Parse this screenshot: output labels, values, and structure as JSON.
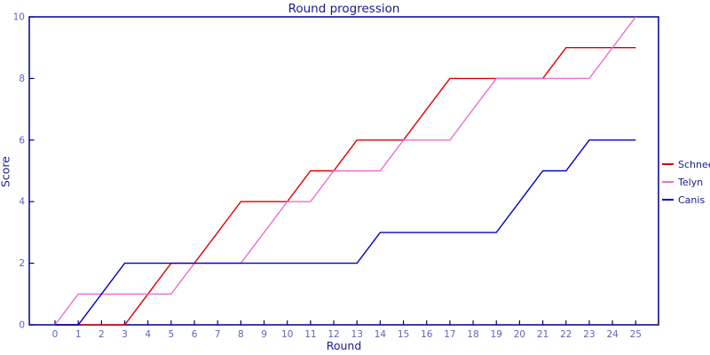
{
  "title": "Round progression",
  "colors": {
    "axis": "#000080",
    "tick_label": "#6363bb",
    "heading_text": "#19198c",
    "background": "#ffffff",
    "schnee": "#dd0000",
    "telyn": "#ee6ec8",
    "canis": "#0000cc"
  },
  "chart_data": {
    "type": "line",
    "title": "Round progression",
    "xlabel": "Round",
    "ylabel": "Score",
    "x": [
      0,
      1,
      2,
      3,
      4,
      5,
      6,
      7,
      8,
      9,
      10,
      11,
      12,
      13,
      14,
      15,
      16,
      17,
      18,
      19,
      20,
      21,
      22,
      23,
      24,
      25
    ],
    "series": [
      {
        "name": "Schnee",
        "color": "#dd0000",
        "values": [
          0,
          0,
          0,
          0,
          1,
          2,
          2,
          3,
          4,
          4,
          4,
          5,
          5,
          6,
          6,
          6,
          7,
          8,
          8,
          8,
          8,
          8,
          9,
          9,
          9,
          9
        ]
      },
      {
        "name": "Telyn",
        "color": "#ee6ec8",
        "values": [
          0,
          1,
          1,
          1,
          1,
          1,
          2,
          2,
          2,
          3,
          4,
          4,
          5,
          5,
          5,
          6,
          6,
          6,
          7,
          8,
          8,
          8,
          8,
          8,
          9,
          10
        ]
      },
      {
        "name": "Canis",
        "color": "#0000cc",
        "values": [
          0,
          0,
          1,
          2,
          2,
          2,
          2,
          2,
          2,
          2,
          2,
          2,
          2,
          2,
          3,
          3,
          3,
          3,
          3,
          3,
          4,
          5,
          5,
          6,
          6,
          6
        ]
      }
    ],
    "x_ticks": [
      0,
      1,
      2,
      3,
      4,
      5,
      6,
      7,
      8,
      9,
      10,
      11,
      12,
      13,
      14,
      15,
      16,
      17,
      18,
      19,
      20,
      21,
      22,
      23,
      24,
      25
    ],
    "y_ticks": [
      0,
      2,
      4,
      6,
      8,
      10
    ],
    "xlim": [
      0,
      25
    ],
    "ylim": [
      0,
      10
    ],
    "grid": false,
    "legend_position": "right"
  }
}
